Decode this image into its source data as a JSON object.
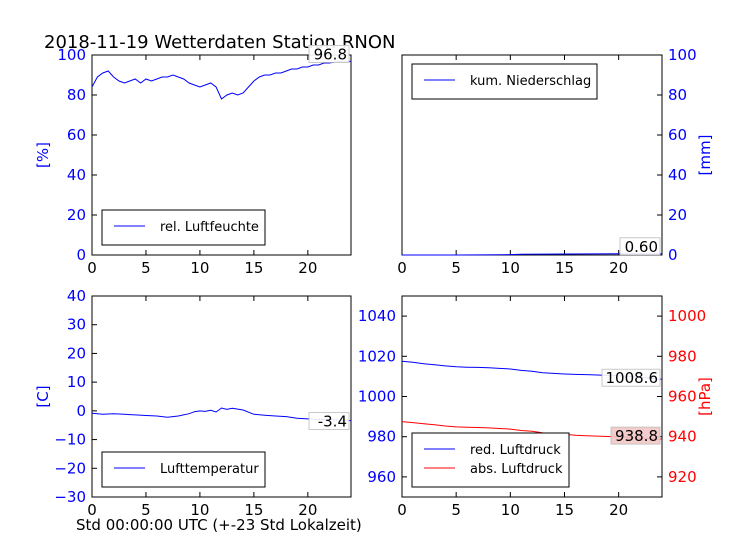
{
  "title": "2018-11-19 Wetterdaten Station RNON",
  "xlabel": "Std 00:00:00 UTC (+-23 Std Lokalzeit)",
  "colors": {
    "blue": "#0000ff",
    "red": "#ff0000",
    "callout_fill": "#f4c7c7"
  },
  "chart_data": [
    {
      "type": "line",
      "panel": "top-left",
      "xlim": [
        0,
        24
      ],
      "xticks": [
        0,
        5,
        10,
        15,
        20
      ],
      "ylim": [
        0,
        100
      ],
      "yticks": [
        0,
        20,
        40,
        60,
        80,
        100
      ],
      "ylabel": "[%]",
      "yaxis_side": "left",
      "legend": "bottom-left",
      "series": [
        {
          "name": "rel. Luftfeuchte",
          "color": "#0000ff",
          "x": [
            0,
            0.5,
            1,
            1.5,
            2,
            2.5,
            3,
            3.5,
            4,
            4.5,
            5,
            5.5,
            6,
            6.5,
            7,
            7.5,
            8,
            8.5,
            9,
            9.5,
            10,
            10.5,
            11,
            11.5,
            12,
            12.5,
            13,
            13.5,
            14,
            14.5,
            15,
            15.5,
            16,
            16.5,
            17,
            17.5,
            18,
            18.5,
            19,
            19.5,
            20,
            20.5,
            21,
            21.5,
            22,
            22.5,
            23,
            23.5,
            24
          ],
          "y": [
            84,
            89,
            91,
            92,
            89,
            87,
            86,
            87,
            88,
            86,
            88,
            87,
            88,
            89,
            89,
            90,
            89,
            88,
            86,
            85,
            84,
            85,
            86,
            84,
            78,
            80,
            81,
            80,
            81,
            84,
            87,
            89,
            90,
            90,
            91,
            91,
            92,
            93,
            93,
            94,
            94,
            95,
            95,
            96,
            96,
            96.5,
            96.8,
            96.8,
            96.8
          ]
        }
      ],
      "last_value_label": "96.8"
    },
    {
      "type": "line",
      "panel": "top-right",
      "xlim": [
        0,
        24
      ],
      "xticks": [
        0,
        5,
        10,
        15,
        20
      ],
      "ylim": [
        0,
        100
      ],
      "yticks": [
        0,
        20,
        40,
        60,
        80,
        100
      ],
      "ylabel": "[mm]",
      "yaxis_side": "right",
      "legend": "top-left",
      "series": [
        {
          "name": "kum. Niederschlag",
          "color": "#0000ff",
          "x": [
            0,
            5,
            9,
            10,
            11,
            15,
            20,
            24
          ],
          "y": [
            0,
            0,
            0.1,
            0.2,
            0.4,
            0.5,
            0.6,
            0.6
          ]
        }
      ],
      "last_value_label": "0.60"
    },
    {
      "type": "line",
      "panel": "bottom-left",
      "xlim": [
        0,
        24
      ],
      "xticks": [
        0,
        5,
        10,
        15,
        20
      ],
      "ylim": [
        -30,
        40
      ],
      "yticks": [
        -30,
        -20,
        -10,
        0,
        10,
        20,
        30,
        40
      ],
      "ylabel": "[C]",
      "yaxis_side": "left",
      "legend": "bottom-left",
      "series": [
        {
          "name": "Lufttemperatur",
          "color": "#0000ff",
          "x": [
            0,
            1,
            2,
            3,
            4,
            5,
            6,
            7,
            8,
            9,
            9.5,
            10,
            10.5,
            11,
            11.5,
            12,
            12.5,
            13,
            14,
            15,
            16,
            17,
            18,
            19,
            20,
            21,
            22,
            23,
            24
          ],
          "y": [
            -0.8,
            -1.2,
            -1.0,
            -1.2,
            -1.4,
            -1.6,
            -1.8,
            -2.2,
            -1.8,
            -1.0,
            -0.3,
            0,
            -0.2,
            0.2,
            -0.4,
            1.0,
            0.5,
            0.9,
            0.3,
            -1.2,
            -1.5,
            -1.8,
            -2.0,
            -2.6,
            -2.8,
            -3.0,
            -3.1,
            -3.3,
            -3.4
          ]
        }
      ],
      "last_value_label": "-3.4"
    },
    {
      "type": "line",
      "panel": "bottom-right",
      "xlim": [
        0,
        24
      ],
      "xticks": [
        0,
        5,
        10,
        15,
        20
      ],
      "ylim_left": [
        950,
        1050
      ],
      "yticks_left": [
        960,
        980,
        1000,
        1020,
        1040
      ],
      "ylim_right": [
        910,
        1010
      ],
      "yticks_right": [
        920,
        940,
        960,
        980,
        1000
      ],
      "ylabel_right": "[hPa]",
      "legend": "bottom-left",
      "series": [
        {
          "name": "red. Luftdruck",
          "color": "#0000ff",
          "axis": "left",
          "x": [
            0,
            1,
            2,
            3,
            4,
            5,
            6,
            7,
            8,
            9,
            10,
            11,
            12,
            13,
            14,
            15,
            16,
            17,
            18,
            19,
            20,
            21,
            22,
            23,
            24
          ],
          "y": [
            1017.5,
            1017,
            1016.3,
            1015.8,
            1015.2,
            1014.8,
            1014.6,
            1014.5,
            1014.3,
            1014.0,
            1013.7,
            1013.0,
            1012.6,
            1011.8,
            1011.5,
            1011.2,
            1011.0,
            1010.9,
            1010.7,
            1010.5,
            1010.3,
            1010.0,
            1009.6,
            1009.0,
            1008.6
          ]
        },
        {
          "name": "abs. Luftdruck",
          "color": "#ff0000",
          "axis": "right",
          "x": [
            0,
            1,
            2,
            3,
            4,
            5,
            6,
            7,
            8,
            9,
            10,
            11,
            12,
            13,
            14,
            15,
            16,
            17,
            18,
            19,
            20,
            21,
            22,
            23,
            24
          ],
          "y": [
            947.5,
            947,
            946.4,
            945.9,
            945.3,
            944.9,
            944.7,
            944.6,
            944.4,
            944.1,
            943.8,
            943.1,
            942.7,
            941.9,
            941.5,
            941.2,
            940.7,
            940.5,
            940.3,
            940.1,
            939.9,
            939.6,
            939.3,
            939.0,
            938.8
          ]
        }
      ],
      "last_value_labels": [
        "1008.6",
        "938.8"
      ]
    }
  ]
}
